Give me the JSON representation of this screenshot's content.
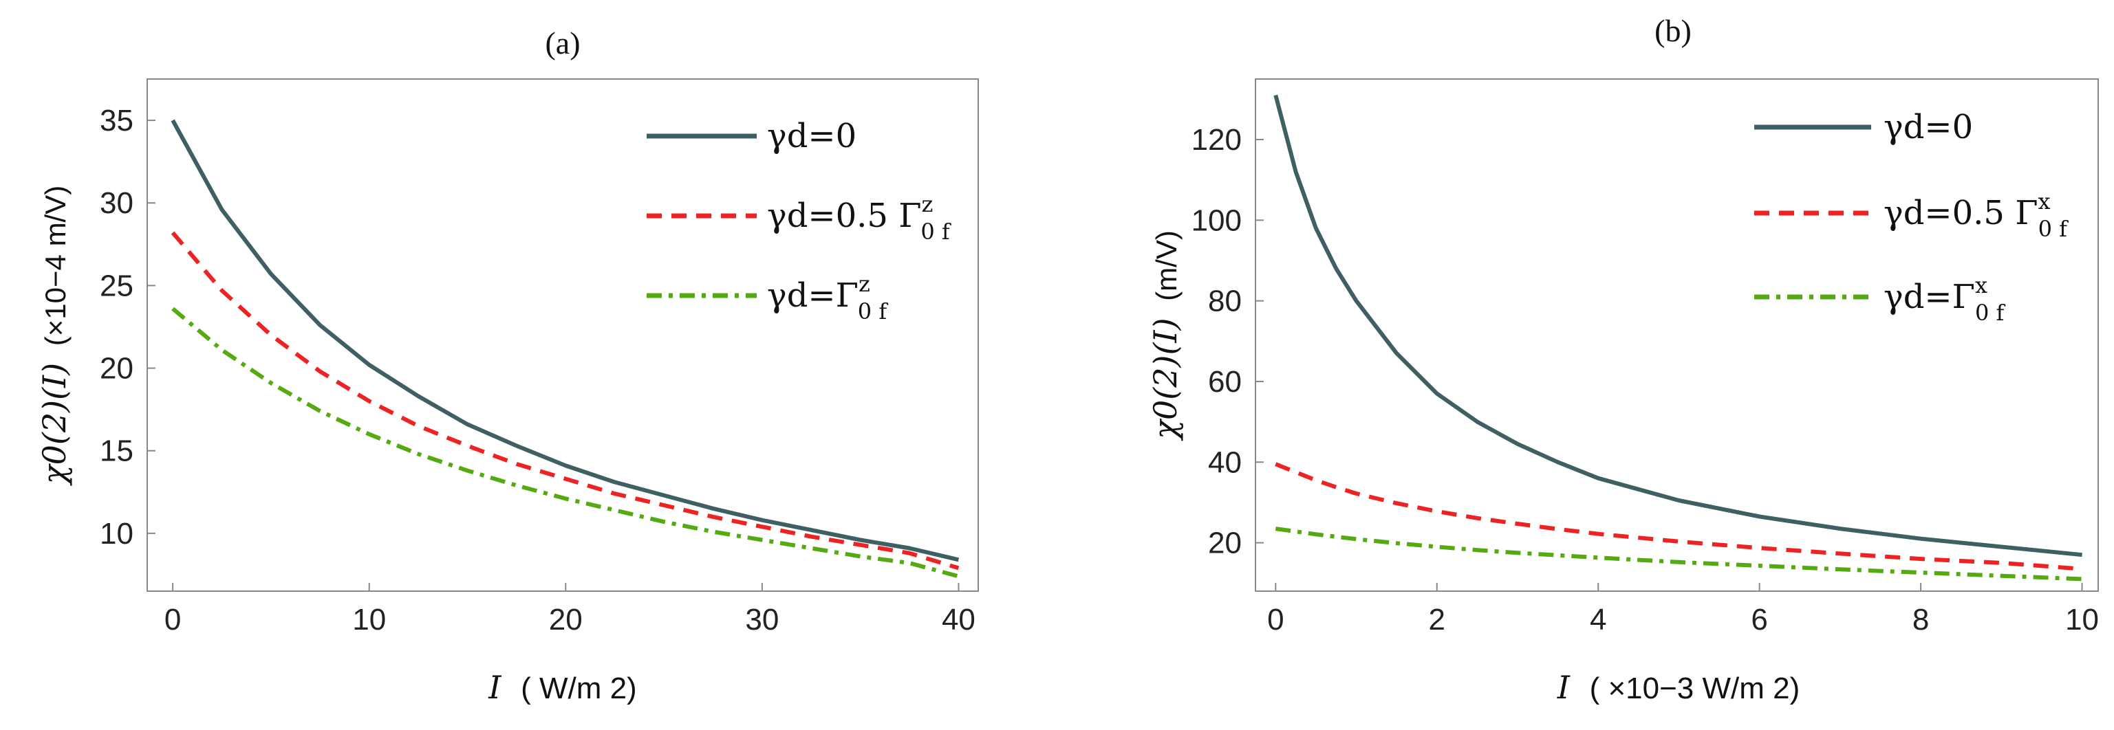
{
  "colors": {
    "solid": "#3e5f63",
    "dashed": "#ee2222",
    "dashdot": "#55aa11",
    "frame": "#888888"
  },
  "chart_data": [
    {
      "type": "line",
      "title": "(a)",
      "xlabel": {
        "symbol": "I",
        "unit": "( W/m 2)"
      },
      "ylabel": {
        "symbol": "χ0(2)(I)",
        "unit": "(×10−4 m/V)"
      },
      "xlim": [
        -1.3,
        41
      ],
      "ylim": [
        6.5,
        37.5
      ],
      "xticks": [
        0,
        10,
        20,
        30,
        40
      ],
      "yticks": [
        10,
        15,
        20,
        25,
        30,
        35
      ],
      "x": [
        0,
        2.5,
        5,
        7.5,
        10,
        12.5,
        15,
        17.5,
        20,
        22.5,
        25,
        27.5,
        30,
        32.5,
        35,
        37.5,
        40
      ],
      "series": [
        {
          "name": "γd=0",
          "label_main": "γd=0",
          "style": "solid",
          "color": "#3e5f63",
          "values": [
            35.0,
            29.6,
            25.7,
            22.6,
            20.2,
            18.3,
            16.6,
            15.3,
            14.1,
            13.1,
            12.3,
            11.5,
            10.8,
            10.2,
            9.6,
            9.1,
            8.4
          ]
        },
        {
          "name": "γd=0.5 Γz0f",
          "label_main": "γd=0.5 Γ",
          "label_sup": "z",
          "label_sub": "0 f",
          "style": "dashed",
          "color": "#ee2222",
          "values": [
            28.2,
            24.7,
            22.0,
            19.8,
            18.0,
            16.5,
            15.3,
            14.2,
            13.3,
            12.4,
            11.7,
            11.0,
            10.4,
            9.8,
            9.3,
            8.8,
            7.9
          ]
        },
        {
          "name": "γd=Γz0f",
          "label_main": "γd=Γ",
          "label_sup": "z",
          "label_sub": "0 f",
          "style": "dashdot",
          "color": "#55aa11",
          "values": [
            23.6,
            21.1,
            19.1,
            17.4,
            16.0,
            14.8,
            13.8,
            12.9,
            12.1,
            11.4,
            10.7,
            10.1,
            9.6,
            9.1,
            8.6,
            8.2,
            7.4
          ]
        }
      ],
      "legend": "top-right"
    },
    {
      "type": "line",
      "title": "(b)",
      "xlabel": {
        "symbol": "I",
        "unit": "( ×10−3 W/m 2)"
      },
      "ylabel": {
        "symbol": "χ0(2)(I)",
        "unit": "(m/V)"
      },
      "xlim": [
        -0.25,
        10.2
      ],
      "ylim": [
        8,
        135
      ],
      "xticks": [
        0,
        2,
        4,
        6,
        8,
        10
      ],
      "yticks": [
        20,
        40,
        60,
        80,
        100,
        120
      ],
      "x": [
        0,
        0.25,
        0.5,
        0.75,
        1,
        1.5,
        2,
        2.5,
        3,
        3.5,
        4,
        5,
        6,
        7,
        8,
        9,
        10
      ],
      "series": [
        {
          "name": "γd=0",
          "label_main": "γd=0",
          "style": "solid",
          "color": "#3e5f63",
          "values": [
            131,
            112,
            98,
            88,
            80,
            67,
            57,
            50,
            44.5,
            40,
            36,
            30.5,
            26.5,
            23.5,
            21,
            19,
            17
          ]
        },
        {
          "name": "γd=0.5 Γx0f",
          "label_main": "γd=0.5 Γ",
          "label_sup": "x",
          "label_sub": "0 f",
          "style": "dashed",
          "color": "#ee2222",
          "values": [
            39.5,
            37.5,
            35.5,
            33.8,
            32.2,
            29.8,
            27.8,
            26.1,
            24.7,
            23.4,
            22.2,
            20.3,
            18.7,
            17.3,
            16.0,
            15.0,
            13.5
          ]
        },
        {
          "name": "γd=Γx0f",
          "label_main": "γd=Γ",
          "label_sup": "x",
          "label_sub": "0 f",
          "style": "dashdot",
          "color": "#55aa11",
          "values": [
            23.5,
            22.8,
            22.1,
            21.5,
            20.9,
            19.9,
            19.0,
            18.2,
            17.5,
            16.9,
            16.3,
            15.2,
            14.3,
            13.4,
            12.6,
            11.8,
            11.0
          ]
        }
      ],
      "legend": "top-right"
    }
  ]
}
